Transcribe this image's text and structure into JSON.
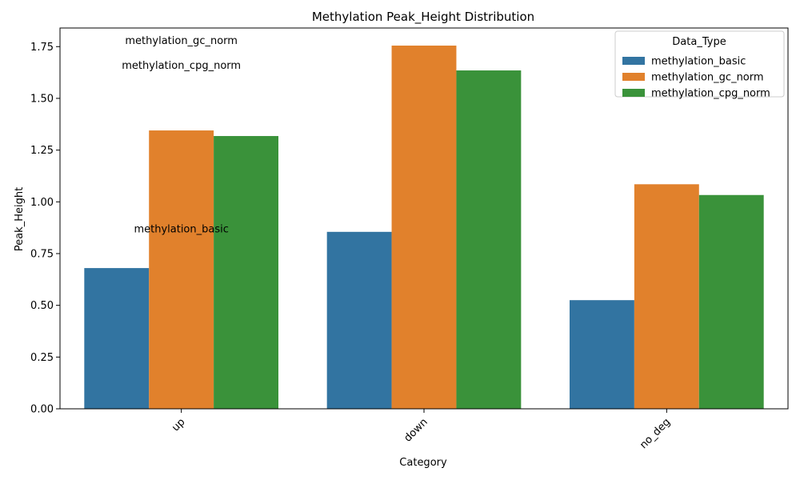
{
  "chart_data": {
    "type": "bar",
    "title": "Methylation Peak_Height Distribution",
    "xlabel": "Category",
    "ylabel": "Peak_Height",
    "categories": [
      "up",
      "down",
      "no_deg"
    ],
    "series": [
      {
        "name": "methylation_basic",
        "values": [
          0.68,
          0.855,
          0.525
        ],
        "color": "#3274a1"
      },
      {
        "name": "methylation_gc_norm",
        "values": [
          1.345,
          1.755,
          1.085
        ],
        "color": "#e1812c"
      },
      {
        "name": "methylation_cpg_norm",
        "values": [
          1.318,
          1.635,
          1.033
        ],
        "color": "#3a923a"
      }
    ],
    "ylim": [
      0,
      1.84
    ],
    "yticks": [
      0.0,
      0.25,
      0.5,
      0.75,
      1.0,
      1.25,
      1.5,
      1.75
    ],
    "ytick_labels": [
      "0.00",
      "0.25",
      "0.50",
      "0.75",
      "1.00",
      "1.25",
      "1.50",
      "1.75"
    ],
    "grid": false,
    "legend": {
      "title": "Data_Type",
      "placement": "top-right"
    },
    "annotations": [
      {
        "text": "methylation_gc_norm",
        "category": "up",
        "y": 1.78
      },
      {
        "text": "methylation_cpg_norm",
        "category": "up",
        "y": 1.66
      },
      {
        "text": "methylation_basic",
        "category": "up",
        "y": 0.87
      }
    ]
  }
}
